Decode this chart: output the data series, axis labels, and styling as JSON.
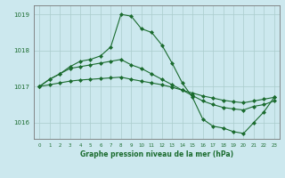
{
  "title": "Graphe pression niveau de la mer (hPa)",
  "bg_color": "#cce8ee",
  "grid_color": "#aacccc",
  "line_color": "#1a6b2e",
  "marker_color": "#1a6b2e",
  "xlim": [
    -0.5,
    23.5
  ],
  "ylim": [
    1015.55,
    1019.25
  ],
  "yticks": [
    1016,
    1017,
    1018,
    1019
  ],
  "xticks": [
    0,
    1,
    2,
    3,
    4,
    5,
    6,
    7,
    8,
    9,
    10,
    11,
    12,
    13,
    14,
    15,
    16,
    17,
    18,
    19,
    20,
    21,
    22,
    23
  ],
  "series": [
    {
      "x": [
        0,
        1,
        2,
        3,
        4,
        5,
        6,
        7,
        8,
        9,
        10,
        11,
        12,
        13,
        14,
        15,
        16,
        17,
        18,
        19,
        20,
        21,
        22,
        23
      ],
      "y": [
        1017.0,
        1017.05,
        1017.1,
        1017.15,
        1017.18,
        1017.2,
        1017.22,
        1017.24,
        1017.26,
        1017.2,
        1017.15,
        1017.1,
        1017.05,
        1016.98,
        1016.9,
        1016.82,
        1016.74,
        1016.68,
        1016.62,
        1016.58,
        1016.55,
        1016.6,
        1016.65,
        1016.7
      ],
      "linewidth": 0.8,
      "marker": "D",
      "markersize": 2.0
    },
    {
      "x": [
        0,
        1,
        2,
        3,
        4,
        5,
        6,
        7,
        8,
        9,
        10,
        11,
        12,
        13,
        14,
        15,
        16,
        17,
        18,
        19,
        20,
        21,
        22,
        23
      ],
      "y": [
        1017.0,
        1017.2,
        1017.35,
        1017.5,
        1017.55,
        1017.6,
        1017.65,
        1017.7,
        1017.75,
        1017.6,
        1017.5,
        1017.35,
        1017.2,
        1017.05,
        1016.9,
        1016.75,
        1016.6,
        1016.5,
        1016.42,
        1016.38,
        1016.35,
        1016.45,
        1016.5,
        1016.6
      ],
      "linewidth": 0.8,
      "marker": "D",
      "markersize": 2.0
    },
    {
      "x": [
        0,
        1,
        2,
        3,
        4,
        5,
        6,
        7,
        8,
        9,
        10,
        11,
        12,
        13,
        14,
        15,
        16,
        17,
        18,
        19,
        20,
        21,
        22,
        23
      ],
      "y": [
        1017.0,
        1017.2,
        1017.35,
        1017.55,
        1017.7,
        1017.75,
        1017.85,
        1018.1,
        1019.0,
        1018.95,
        1018.6,
        1018.5,
        1018.15,
        1017.65,
        1017.1,
        1016.7,
        1016.1,
        1015.9,
        1015.85,
        1015.75,
        1015.7,
        1016.0,
        1016.3,
        1016.7
      ],
      "linewidth": 0.8,
      "marker": "D",
      "markersize": 2.0
    }
  ]
}
